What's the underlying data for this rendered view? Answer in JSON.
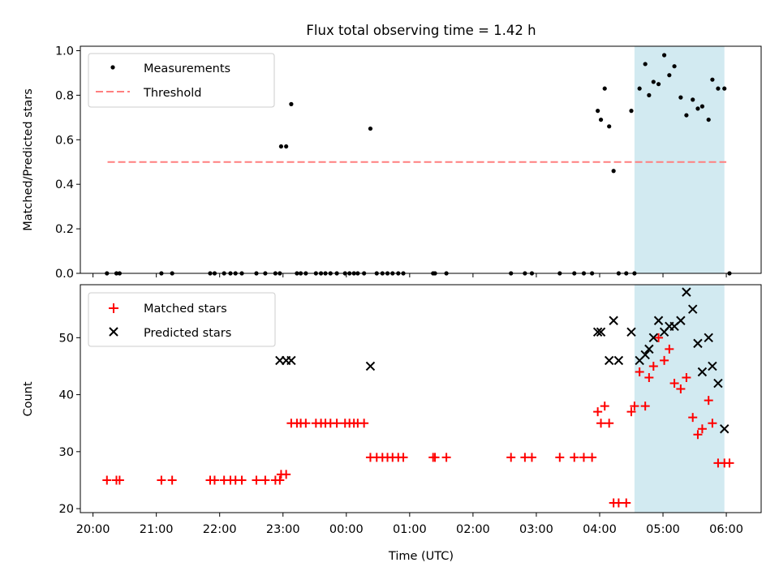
{
  "chart_data": [
    {
      "type": "scatter",
      "title": "Flux total observing time = 1.42 h",
      "xlabel": "",
      "ylabel": "Matched/Predicted stars",
      "xlim": [
        19.8,
        30.55
      ],
      "ylim": [
        0,
        1.02
      ],
      "yticks": [
        0.0,
        0.2,
        0.4,
        0.6,
        0.8,
        1.0
      ],
      "ytick_labels": [
        "0.0",
        "0.2",
        "0.4",
        "0.6",
        "0.8",
        "1.0"
      ],
      "shaded_region": [
        28.55,
        29.97
      ],
      "legend": {
        "position": "top-left",
        "entries": [
          "Measurements",
          "Threshold"
        ]
      },
      "threshold": {
        "name": "Threshold",
        "value": 0.5,
        "x_range": [
          20.23,
          30.0
        ],
        "color": "#ff7f7f"
      },
      "series": [
        {
          "name": "Measurements",
          "color": "#000000",
          "x": [
            20.22,
            20.37,
            20.42,
            21.08,
            21.25,
            21.85,
            21.92,
            22.07,
            22.17,
            22.25,
            22.35,
            22.58,
            22.72,
            22.88,
            22.95,
            22.97,
            23.05,
            23.13,
            23.22,
            23.28,
            23.36,
            23.52,
            23.6,
            23.67,
            23.75,
            23.85,
            23.98,
            24.05,
            24.12,
            24.18,
            24.28,
            24.38,
            24.48,
            24.57,
            24.65,
            24.73,
            24.82,
            24.9,
            25.37,
            25.4,
            25.58,
            26.6,
            26.82,
            26.93,
            27.37,
            27.6,
            27.75,
            27.88,
            27.97,
            28.02,
            28.08,
            28.15,
            28.22,
            28.3,
            28.42,
            28.5,
            28.55,
            28.63,
            28.72,
            28.78,
            28.85,
            28.93,
            29.02,
            29.1,
            29.18,
            29.28,
            29.37,
            29.47,
            29.55,
            29.62,
            29.72,
            29.78,
            29.87,
            29.97,
            30.05
          ],
          "y": [
            0.0,
            0.0,
            0.0,
            0.0,
            0.0,
            0.0,
            0.0,
            0.0,
            0.0,
            0.0,
            0.0,
            0.0,
            0.0,
            0.0,
            0.0,
            0.57,
            0.57,
            0.76,
            0.0,
            0.0,
            0.0,
            0.0,
            0.0,
            0.0,
            0.0,
            0.0,
            0.0,
            0.0,
            0.0,
            0.0,
            0.0,
            0.65,
            0.0,
            0.0,
            0.0,
            0.0,
            0.0,
            0.0,
            0.0,
            0.0,
            0.0,
            0.0,
            0.0,
            0.0,
            0.0,
            0.0,
            0.0,
            0.0,
            0.73,
            0.69,
            0.83,
            0.66,
            0.46,
            0.0,
            0.0,
            0.73,
            0.0,
            0.83,
            0.94,
            0.8,
            0.86,
            0.85,
            0.98,
            0.89,
            0.93,
            0.79,
            0.71,
            0.78,
            0.74,
            0.75,
            0.69,
            0.87,
            0.83,
            0.83,
            0.0
          ]
        }
      ]
    },
    {
      "type": "scatter",
      "title": "",
      "xlabel": "Time (UTC)",
      "ylabel": "Count",
      "xlim": [
        19.8,
        30.55
      ],
      "ylim": [
        19.3,
        59.3
      ],
      "yticks": [
        20,
        30,
        40,
        50
      ],
      "ytick_labels": [
        "20",
        "30",
        "40",
        "50"
      ],
      "xticks": [
        20,
        21,
        22,
        23,
        24,
        25,
        26,
        27,
        28,
        29,
        30
      ],
      "xtick_labels": [
        "20:00",
        "21:00",
        "22:00",
        "23:00",
        "00:00",
        "01:00",
        "02:00",
        "03:00",
        "04:00",
        "05:00",
        "06:00"
      ],
      "shaded_region": [
        28.55,
        29.97
      ],
      "legend": {
        "position": "top-left",
        "entries": [
          "Matched stars",
          "Predicted stars"
        ]
      },
      "series": [
        {
          "name": "Matched stars",
          "marker": "plus",
          "color": "#ff0000",
          "x": [
            20.22,
            20.37,
            20.42,
            21.08,
            21.25,
            21.85,
            21.92,
            22.07,
            22.17,
            22.25,
            22.35,
            22.58,
            22.72,
            22.88,
            22.95,
            22.97,
            23.05,
            23.13,
            23.22,
            23.28,
            23.36,
            23.52,
            23.6,
            23.67,
            23.75,
            23.85,
            23.98,
            24.05,
            24.12,
            24.18,
            24.28,
            24.38,
            24.48,
            24.57,
            24.65,
            24.73,
            24.82,
            24.9,
            25.37,
            25.4,
            25.58,
            26.6,
            26.82,
            26.93,
            27.37,
            27.6,
            27.75,
            27.88,
            27.97,
            28.02,
            28.08,
            28.15,
            28.22,
            28.3,
            28.42,
            28.5,
            28.55,
            28.63,
            28.72,
            28.78,
            28.85,
            28.93,
            29.02,
            29.1,
            29.18,
            29.28,
            29.37,
            29.47,
            29.55,
            29.62,
            29.72,
            29.78,
            29.87,
            29.97,
            30.05
          ],
          "y": [
            25,
            25,
            25,
            25,
            25,
            25,
            25,
            25,
            25,
            25,
            25,
            25,
            25,
            25,
            25,
            26,
            26,
            35,
            35,
            35,
            35,
            35,
            35,
            35,
            35,
            35,
            35,
            35,
            35,
            35,
            35,
            29,
            29,
            29,
            29,
            29,
            29,
            29,
            29,
            29,
            29,
            29,
            29,
            29,
            29,
            29,
            29,
            29,
            37,
            35,
            38,
            35,
            21,
            21,
            21,
            37,
            38,
            44,
            38,
            43,
            45,
            50,
            46,
            48,
            42,
            41,
            43,
            36,
            33,
            34,
            39,
            35,
            28,
            28,
            28
          ]
        },
        {
          "name": "Predicted stars",
          "marker": "x",
          "color": "#000000",
          "x": [
            22.95,
            23.05,
            23.13,
            24.38,
            27.97,
            28.02,
            28.15,
            28.22,
            28.3,
            28.5,
            28.63,
            28.72,
            28.78,
            28.85,
            28.93,
            29.02,
            29.1,
            29.18,
            29.28,
            29.37,
            29.47,
            29.55,
            29.62,
            29.72,
            29.78,
            29.87,
            29.97
          ],
          "y": [
            46,
            46,
            46,
            45,
            51,
            51,
            46,
            53,
            46,
            51,
            46,
            47,
            48,
            50,
            53,
            51,
            52,
            52,
            53,
            58,
            55,
            49,
            44,
            50,
            45,
            42,
            34
          ]
        }
      ]
    }
  ]
}
